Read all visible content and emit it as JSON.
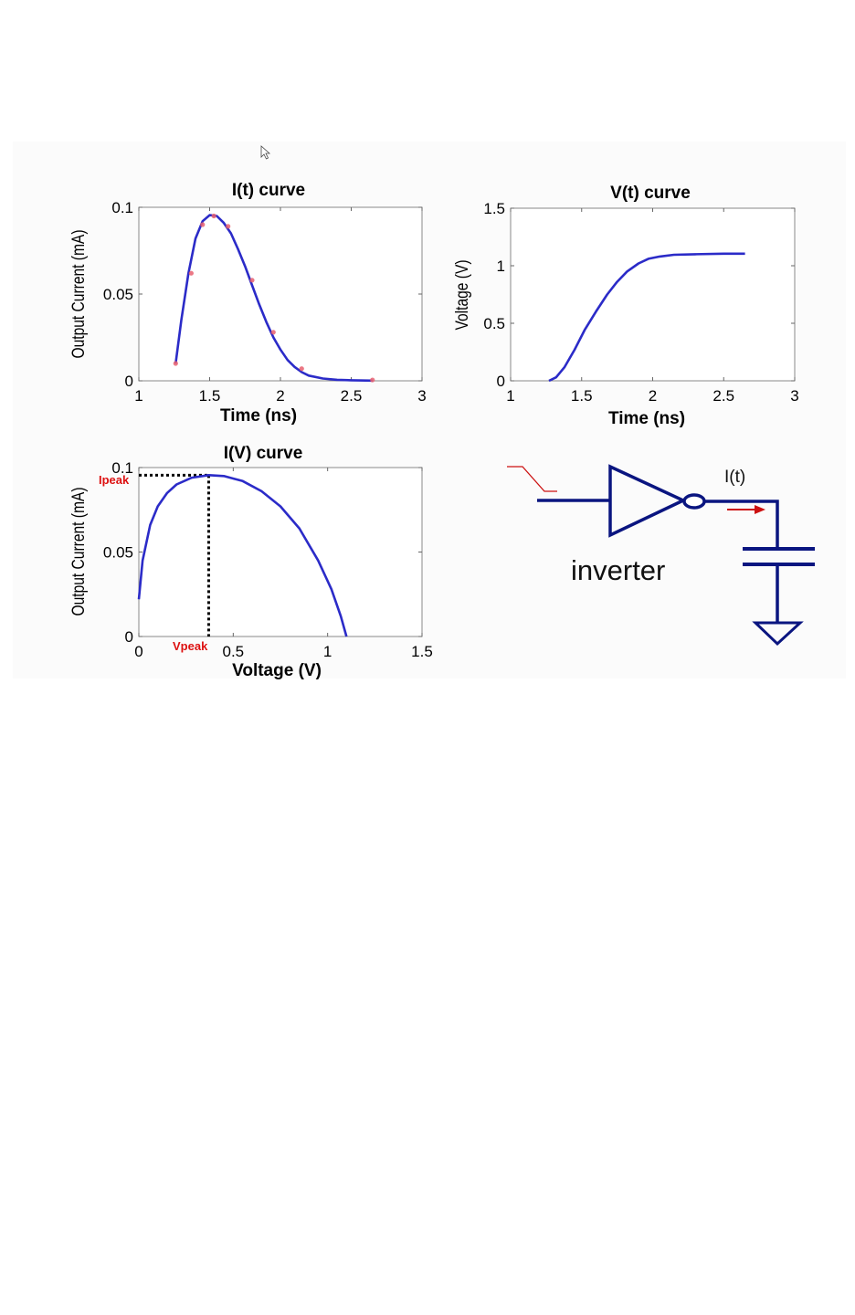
{
  "colors": {
    "curve": "#2b2bc8",
    "marker": "#e86070",
    "label_red": "#dd1111",
    "axis": "#000000",
    "circuit": "#0a1580",
    "arrow": "#cc1111",
    "panel_bg": "#fbfbfb"
  },
  "chart_data": [
    {
      "type": "line",
      "title": "I(t) curve",
      "xlabel": "Time (ns)",
      "ylabel": "Output Current (mA)",
      "xlim": [
        1,
        3
      ],
      "ylim": [
        0,
        0.1
      ],
      "xticks": [
        1,
        1.5,
        2,
        2.5,
        3
      ],
      "xtick_labels": [
        "1",
        "1.5",
        "2",
        "2.5",
        "3"
      ],
      "yticks": [
        0,
        0.05,
        0.1
      ],
      "ytick_labels": [
        "0",
        "0.05",
        "0.1"
      ],
      "series": [
        {
          "name": "I(t)",
          "x": [
            1.26,
            1.3,
            1.35,
            1.4,
            1.45,
            1.5,
            1.55,
            1.6,
            1.65,
            1.7,
            1.75,
            1.8,
            1.85,
            1.9,
            1.95,
            2.0,
            2.05,
            2.1,
            2.15,
            2.2,
            2.3,
            2.4,
            2.5,
            2.65
          ],
          "y": [
            0.01,
            0.035,
            0.062,
            0.082,
            0.092,
            0.0955,
            0.095,
            0.091,
            0.085,
            0.076,
            0.066,
            0.055,
            0.044,
            0.034,
            0.025,
            0.018,
            0.012,
            0.008,
            0.005,
            0.003,
            0.0013,
            0.0006,
            0.0003,
            0.0001
          ]
        }
      ],
      "markers": {
        "x": [
          1.26,
          1.37,
          1.45,
          1.53,
          1.63,
          1.8,
          1.95,
          2.15,
          2.65
        ],
        "y": [
          0.01,
          0.062,
          0.09,
          0.095,
          0.089,
          0.058,
          0.028,
          0.007,
          0.0005
        ]
      }
    },
    {
      "type": "line",
      "title": "V(t) curve",
      "xlabel": "Time (ns)",
      "ylabel": "Voltage (V)",
      "xlim": [
        1,
        3
      ],
      "ylim": [
        0,
        1.5
      ],
      "xticks": [
        1,
        1.5,
        2,
        2.5,
        3
      ],
      "xtick_labels": [
        "1",
        "1.5",
        "2",
        "2.5",
        "3"
      ],
      "yticks": [
        0,
        0.5,
        1,
        1.5
      ],
      "ytick_labels": [
        "0",
        "0.5",
        "1",
        "1.5"
      ],
      "series": [
        {
          "name": "V(t)",
          "x": [
            1.27,
            1.32,
            1.38,
            1.45,
            1.52,
            1.6,
            1.68,
            1.75,
            1.82,
            1.9,
            1.97,
            2.05,
            2.15,
            2.3,
            2.5,
            2.65
          ],
          "y": [
            0.0,
            0.03,
            0.12,
            0.27,
            0.44,
            0.6,
            0.75,
            0.86,
            0.95,
            1.02,
            1.06,
            1.08,
            1.095,
            1.1,
            1.105,
            1.105
          ]
        }
      ]
    },
    {
      "type": "line",
      "title": "I(V) curve",
      "xlabel": "Voltage (V)",
      "ylabel": "Output Current (mA)",
      "xlim": [
        0,
        1.5
      ],
      "ylim": [
        0,
        0.1
      ],
      "xticks": [
        0,
        0.5,
        1,
        1.5
      ],
      "xtick_labels": [
        "0",
        "0.5",
        "1",
        "1.5"
      ],
      "yticks": [
        0,
        0.05,
        0.1
      ],
      "ytick_labels": [
        "0",
        "0.05",
        "0.1"
      ],
      "series": [
        {
          "name": "I(V)",
          "x": [
            0.0,
            0.02,
            0.06,
            0.1,
            0.15,
            0.2,
            0.28,
            0.37,
            0.45,
            0.55,
            0.65,
            0.75,
            0.85,
            0.95,
            1.02,
            1.07,
            1.1
          ],
          "y": [
            0.022,
            0.045,
            0.066,
            0.077,
            0.085,
            0.09,
            0.094,
            0.0955,
            0.095,
            0.092,
            0.086,
            0.077,
            0.064,
            0.045,
            0.028,
            0.012,
            0.0
          ]
        }
      ],
      "annotations": {
        "peak": {
          "x": 0.37,
          "y": 0.0955
        },
        "ipeak_label": "Ipeak",
        "vpeak_label": "Vpeak"
      }
    }
  ],
  "circuit": {
    "inverter_label": "inverter",
    "current_label": "I(t)"
  }
}
